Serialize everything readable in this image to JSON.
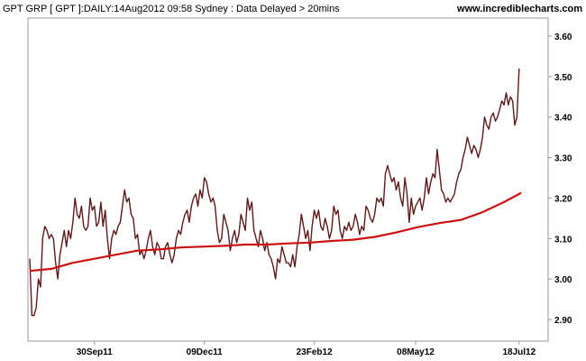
{
  "header": {
    "title": "GPT GRP [ GPT ]:DAILY:14Aug2012 09:58 Sydney : Data Delayed > 20mins",
    "site": "www.incrediblecharts.com"
  },
  "chart_data": {
    "type": "line",
    "title": "GPT GRP [ GPT ]:DAILY:14Aug2012 09:58 Sydney : Data Delayed > 20mins",
    "ylim": [
      2.85,
      3.65
    ],
    "yticks": [
      2.9,
      3.0,
      3.1,
      3.2,
      3.3,
      3.4,
      3.5,
      3.6
    ],
    "ytick_labels": [
      "2.90",
      "3.00",
      "3.10",
      "3.20",
      "3.30",
      "3.40",
      "3.50",
      "3.60"
    ],
    "xlim": [
      0,
      232
    ],
    "xticks": [
      {
        "pos": 30,
        "label": "30Sep11"
      },
      {
        "pos": 81,
        "label": "09Dec11"
      },
      {
        "pos": 132,
        "label": "23Feb12"
      },
      {
        "pos": 179,
        "label": "08May12"
      },
      {
        "pos": 227,
        "label": "18Jul12"
      }
    ],
    "grid": false,
    "legend": "none",
    "series": [
      {
        "color": "#5c1a1a",
        "points": [
          [
            0,
            3.05
          ],
          [
            1,
            2.91
          ],
          [
            2,
            2.91
          ],
          [
            3,
            2.93
          ],
          [
            4,
            3.0
          ],
          [
            5,
            2.98
          ],
          [
            6,
            3.1
          ],
          [
            7,
            3.13
          ],
          [
            8,
            3.12
          ],
          [
            9,
            3.1
          ],
          [
            10,
            3.11
          ],
          [
            11,
            3.1
          ],
          [
            12,
            3.04
          ],
          [
            13,
            3.0
          ],
          [
            14,
            3.06
          ],
          [
            15,
            3.09
          ],
          [
            16,
            3.12
          ],
          [
            17,
            3.08
          ],
          [
            18,
            3.12
          ],
          [
            19,
            3.1
          ],
          [
            20,
            3.14
          ],
          [
            21,
            3.2
          ],
          [
            22,
            3.16
          ],
          [
            23,
            3.15
          ],
          [
            24,
            3.18
          ],
          [
            25,
            3.13
          ],
          [
            26,
            3.12
          ],
          [
            27,
            3.13
          ],
          [
            28,
            3.2
          ],
          [
            29,
            3.17
          ],
          [
            30,
            3.18
          ],
          [
            31,
            3.13
          ],
          [
            32,
            3.14
          ],
          [
            33,
            3.19
          ],
          [
            34,
            3.13
          ],
          [
            35,
            3.17
          ],
          [
            36,
            3.1
          ],
          [
            37,
            3.05
          ],
          [
            38,
            3.1
          ],
          [
            39,
            3.12
          ],
          [
            40,
            3.11
          ],
          [
            41,
            3.13
          ],
          [
            42,
            3.14
          ],
          [
            43,
            3.18
          ],
          [
            44,
            3.22
          ],
          [
            45,
            3.19
          ],
          [
            46,
            3.2
          ],
          [
            47,
            3.16
          ],
          [
            48,
            3.15
          ],
          [
            49,
            3.1
          ],
          [
            50,
            3.11
          ],
          [
            51,
            3.06
          ],
          [
            52,
            3.07
          ],
          [
            53,
            3.05
          ],
          [
            54,
            3.07
          ],
          [
            55,
            3.1
          ],
          [
            56,
            3.12
          ],
          [
            57,
            3.08
          ],
          [
            58,
            3.06
          ],
          [
            59,
            3.09
          ],
          [
            60,
            3.08
          ],
          [
            61,
            3.05
          ],
          [
            62,
            3.05
          ],
          [
            63,
            3.08
          ],
          [
            64,
            3.09
          ],
          [
            65,
            3.06
          ],
          [
            66,
            3.04
          ],
          [
            67,
            3.06
          ],
          [
            68,
            3.1
          ],
          [
            69,
            3.12
          ],
          [
            70,
            3.11
          ],
          [
            71,
            3.14
          ],
          [
            72,
            3.16
          ],
          [
            73,
            3.17
          ],
          [
            74,
            3.14
          ],
          [
            75,
            3.18
          ],
          [
            76,
            3.2
          ],
          [
            77,
            3.21
          ],
          [
            78,
            3.18
          ],
          [
            79,
            3.22
          ],
          [
            80,
            3.2
          ],
          [
            81,
            3.25
          ],
          [
            82,
            3.24
          ],
          [
            83,
            3.21
          ],
          [
            84,
            3.19
          ],
          [
            85,
            3.2
          ],
          [
            86,
            3.18
          ],
          [
            87,
            3.12
          ],
          [
            88,
            3.09
          ],
          [
            89,
            3.1
          ],
          [
            90,
            3.16
          ],
          [
            91,
            3.14
          ],
          [
            92,
            3.12
          ],
          [
            93,
            3.07
          ],
          [
            94,
            3.1
          ],
          [
            95,
            3.12
          ],
          [
            96,
            3.09
          ],
          [
            97,
            3.11
          ],
          [
            98,
            3.16
          ],
          [
            99,
            3.14
          ],
          [
            100,
            3.12
          ],
          [
            101,
            3.2
          ],
          [
            102,
            3.17
          ],
          [
            103,
            3.19
          ],
          [
            104,
            3.12
          ],
          [
            105,
            3.1
          ],
          [
            106,
            3.08
          ],
          [
            107,
            3.12
          ],
          [
            108,
            3.1
          ],
          [
            109,
            3.07
          ],
          [
            110,
            3.09
          ],
          [
            111,
            3.06
          ],
          [
            112,
            3.05
          ],
          [
            113,
            3.03
          ],
          [
            114,
            3.0
          ],
          [
            115,
            3.05
          ],
          [
            116,
            3.04
          ],
          [
            117,
            3.08
          ],
          [
            118,
            3.06
          ],
          [
            119,
            3.04
          ],
          [
            120,
            3.04
          ],
          [
            121,
            3.03
          ],
          [
            122,
            3.06
          ],
          [
            123,
            3.03
          ],
          [
            124,
            3.08
          ],
          [
            125,
            3.11
          ],
          [
            126,
            3.16
          ],
          [
            127,
            3.13
          ],
          [
            128,
            3.1
          ],
          [
            129,
            3.12
          ],
          [
            130,
            3.07
          ],
          [
            131,
            3.13
          ],
          [
            132,
            3.17
          ],
          [
            133,
            3.15
          ],
          [
            134,
            3.17
          ],
          [
            135,
            3.13
          ],
          [
            136,
            3.12
          ],
          [
            137,
            3.15
          ],
          [
            138,
            3.13
          ],
          [
            139,
            3.1
          ],
          [
            140,
            3.12
          ],
          [
            141,
            3.18
          ],
          [
            142,
            3.16
          ],
          [
            143,
            3.17
          ],
          [
            144,
            3.12
          ],
          [
            145,
            3.1
          ],
          [
            146,
            3.13
          ],
          [
            147,
            3.12
          ],
          [
            148,
            3.14
          ],
          [
            149,
            3.12
          ],
          [
            150,
            3.13
          ],
          [
            151,
            3.16
          ],
          [
            152,
            3.14
          ],
          [
            153,
            3.11
          ],
          [
            154,
            3.13
          ],
          [
            155,
            3.12
          ],
          [
            156,
            3.18
          ],
          [
            157,
            3.17
          ],
          [
            158,
            3.15
          ],
          [
            159,
            3.14
          ],
          [
            160,
            3.16
          ],
          [
            161,
            3.2
          ],
          [
            162,
            3.19
          ],
          [
            163,
            3.2
          ],
          [
            164,
            3.18
          ],
          [
            165,
            3.26
          ],
          [
            166,
            3.28
          ],
          [
            167,
            3.26
          ],
          [
            168,
            3.24
          ],
          [
            169,
            3.25
          ],
          [
            170,
            3.22
          ],
          [
            171,
            3.24
          ],
          [
            172,
            3.2
          ],
          [
            173,
            3.18
          ],
          [
            174,
            3.25
          ],
          [
            175,
            3.21
          ],
          [
            176,
            3.14
          ],
          [
            177,
            3.2
          ],
          [
            178,
            3.16
          ],
          [
            179,
            3.18
          ],
          [
            180,
            3.19
          ],
          [
            181,
            3.2
          ],
          [
            182,
            3.17
          ],
          [
            183,
            3.2
          ],
          [
            184,
            3.25
          ],
          [
            185,
            3.21
          ],
          [
            186,
            3.24
          ],
          [
            187,
            3.26
          ],
          [
            188,
            3.25
          ],
          [
            189,
            3.32
          ],
          [
            190,
            3.27
          ],
          [
            191,
            3.22
          ],
          [
            192,
            3.21
          ],
          [
            193,
            3.19
          ],
          [
            194,
            3.2
          ],
          [
            195,
            3.19
          ],
          [
            196,
            3.2
          ],
          [
            197,
            3.21
          ],
          [
            198,
            3.24
          ],
          [
            199,
            3.26
          ],
          [
            200,
            3.27
          ],
          [
            201,
            3.3
          ],
          [
            202,
            3.32
          ],
          [
            203,
            3.35
          ],
          [
            204,
            3.33
          ],
          [
            205,
            3.31
          ],
          [
            206,
            3.33
          ],
          [
            207,
            3.32
          ],
          [
            208,
            3.3
          ],
          [
            209,
            3.32
          ],
          [
            210,
            3.35
          ],
          [
            211,
            3.4
          ],
          [
            212,
            3.38
          ],
          [
            213,
            3.37
          ],
          [
            214,
            3.4
          ],
          [
            215,
            3.41
          ],
          [
            216,
            3.39
          ],
          [
            217,
            3.4
          ],
          [
            218,
            3.42
          ],
          [
            219,
            3.44
          ],
          [
            220,
            3.43
          ],
          [
            221,
            3.46
          ],
          [
            222,
            3.43
          ],
          [
            223,
            3.45
          ],
          [
            224,
            3.44
          ],
          [
            225,
            3.38
          ],
          [
            226,
            3.4
          ],
          [
            227,
            3.52
          ]
        ]
      },
      {
        "color": "#cc1111",
        "points": [
          [
            0,
            3.02
          ],
          [
            10,
            3.025
          ],
          [
            20,
            3.04
          ],
          [
            30,
            3.05
          ],
          [
            40,
            3.06
          ],
          [
            50,
            3.07
          ],
          [
            60,
            3.073
          ],
          [
            70,
            3.078
          ],
          [
            80,
            3.08
          ],
          [
            90,
            3.082
          ],
          [
            100,
            3.085
          ],
          [
            110,
            3.085
          ],
          [
            120,
            3.088
          ],
          [
            130,
            3.09
          ],
          [
            140,
            3.094
          ],
          [
            150,
            3.097
          ],
          [
            160,
            3.104
          ],
          [
            170,
            3.115
          ],
          [
            180,
            3.128
          ],
          [
            190,
            3.138
          ],
          [
            200,
            3.146
          ],
          [
            210,
            3.165
          ],
          [
            220,
            3.19
          ],
          [
            228,
            3.213
          ]
        ]
      }
    ]
  }
}
